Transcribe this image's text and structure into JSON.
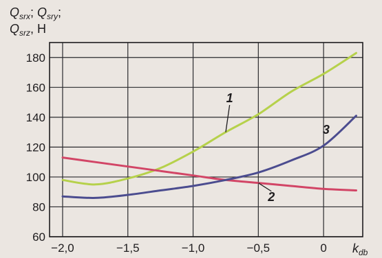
{
  "chart_data": {
    "type": "line",
    "title": "",
    "ylabel_line1": "Q_srx; Q_sry;",
    "ylabel_line2": "Q_srz, Н",
    "ylabel_parts": {
      "l1a": "Q",
      "l1a_sub": "srx",
      "l1a_sep": "; ",
      "l1b": "Q",
      "l1b_sub": "sry",
      "l1b_sep": ";",
      "l2a": "Q",
      "l2a_sub": "srz",
      "l2a_unit": ", Н"
    },
    "xlabel": "k",
    "xlabel_sub": "db",
    "xlim": [
      -2.1,
      0.3
    ],
    "ylim": [
      60,
      190
    ],
    "x_ticks": [
      -2.0,
      -1.5,
      -1.0,
      -0.5,
      0
    ],
    "x_tick_labels": [
      "−2,0",
      "−1,5",
      "−1,0",
      "−0,5",
      "0"
    ],
    "y_ticks": [
      60,
      80,
      100,
      120,
      140,
      160,
      180
    ],
    "y_tick_labels": [
      "60",
      "80",
      "100",
      "120",
      "140",
      "160",
      "180"
    ],
    "grid": true,
    "series": [
      {
        "name": "1",
        "color": "#b6d14b",
        "x": [
          -2.0,
          -1.75,
          -1.5,
          -1.25,
          -1.0,
          -0.75,
          -0.5,
          -0.25,
          0.0,
          0.25
        ],
        "y": [
          98,
          95,
          99,
          106,
          117,
          130,
          142,
          157,
          169,
          183
        ]
      },
      {
        "name": "2",
        "color": "#d24566",
        "x": [
          -2.0,
          -1.75,
          -1.5,
          -1.25,
          -1.0,
          -0.75,
          -0.5,
          -0.25,
          0.0,
          0.25
        ],
        "y": [
          113,
          110,
          107,
          104,
          101,
          98,
          96,
          94,
          92,
          91
        ]
      },
      {
        "name": "3",
        "color": "#4b4c8f",
        "x": [
          -2.0,
          -1.75,
          -1.5,
          -1.25,
          -1.0,
          -0.75,
          -0.5,
          -0.25,
          0.0,
          0.25
        ],
        "y": [
          87,
          86,
          88,
          91,
          94,
          98,
          103,
          111,
          121,
          141
        ]
      }
    ]
  }
}
